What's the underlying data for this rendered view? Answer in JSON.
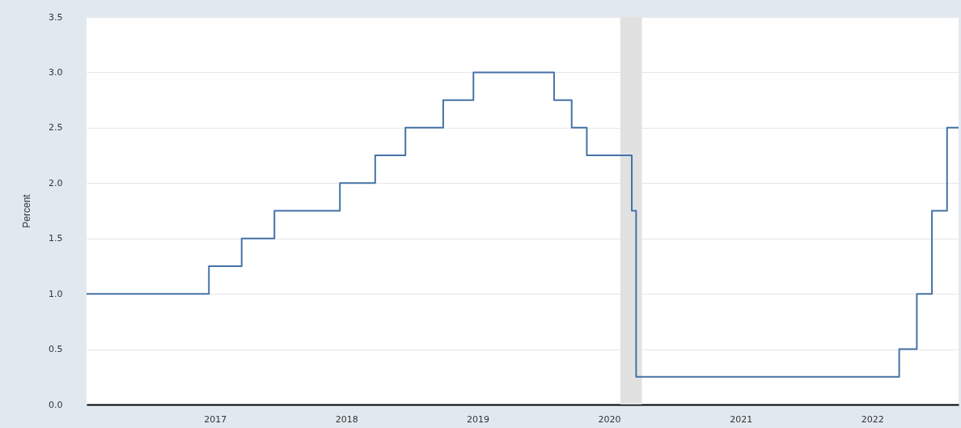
{
  "chart_data": {
    "type": "step",
    "ylabel": "Percent",
    "x": [
      "2016-01-10",
      "2016-12-15",
      "2017-03-16",
      "2017-06-15",
      "2017-12-14",
      "2018-03-22",
      "2018-06-14",
      "2018-09-27",
      "2018-12-20",
      "2019-08-01",
      "2019-09-19",
      "2019-10-31",
      "2020-03-04",
      "2020-03-16",
      "2022-03-17",
      "2022-05-05",
      "2022-06-16",
      "2022-07-28",
      "2022-08-29"
    ],
    "series": [
      {
        "color": "#4572a7",
        "values": [
          1.0,
          1.25,
          1.5,
          1.75,
          2.0,
          2.25,
          2.5,
          2.75,
          3.0,
          2.75,
          2.5,
          2.25,
          1.75,
          0.25,
          0.5,
          1.0,
          1.75,
          2.5,
          2.5
        ]
      }
    ],
    "xlim": [
      "2016-01-10",
      "2022-08-29"
    ],
    "xticks": [
      {
        "value": "2017-01-01",
        "label": "2017"
      },
      {
        "value": "2018-01-01",
        "label": "2018"
      },
      {
        "value": "2019-01-01",
        "label": "2019"
      },
      {
        "value": "2020-01-01",
        "label": "2020"
      },
      {
        "value": "2021-01-01",
        "label": "2021"
      },
      {
        "value": "2022-01-01",
        "label": "2022"
      }
    ],
    "ylim": [
      0,
      3.5
    ],
    "yticks": [
      {
        "value": 0,
        "label": "0.0"
      },
      {
        "value": 0.5,
        "label": "0.5"
      },
      {
        "value": 1,
        "label": "1.0"
      },
      {
        "value": 1.5,
        "label": "1.5"
      },
      {
        "value": 2,
        "label": "2.0"
      },
      {
        "value": 2.5,
        "label": "2.5"
      },
      {
        "value": 3,
        "label": "3.0"
      },
      {
        "value": 3.5,
        "label": "3.5"
      }
    ],
    "grid": "y",
    "bands": [
      {
        "axis": "x",
        "from": "2020-02-01",
        "to": "2020-04-01",
        "color": "#e1e1e1"
      }
    ]
  }
}
